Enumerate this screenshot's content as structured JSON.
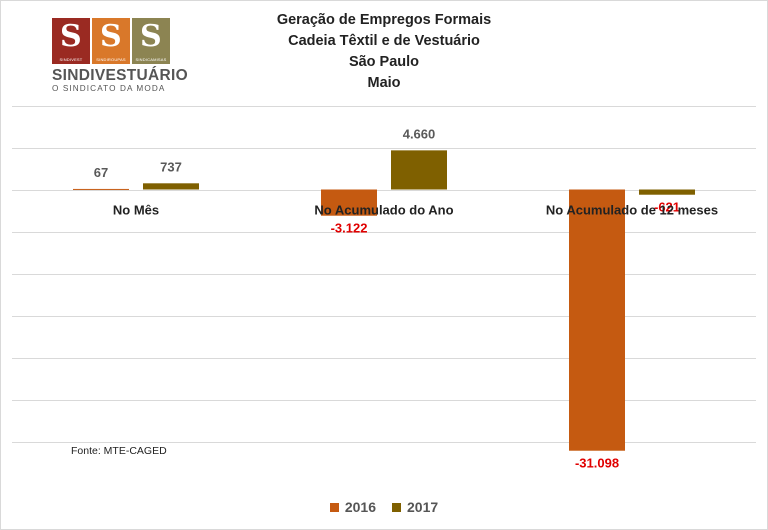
{
  "logo": {
    "squares": [
      {
        "caption": "SINDIVEST",
        "color": "#9a2a22",
        "icon": "s-mark"
      },
      {
        "caption": "SINDIROUPAS",
        "color": "#d9782a",
        "icon": "s-mark"
      },
      {
        "caption": "SINDICAMISAS",
        "color": "#8c8452",
        "icon": "s-mark"
      }
    ],
    "name": "SINDIVESTUÁRIO",
    "tagline": "O SINDICATO DA MODA"
  },
  "source": "Fonte: MTE-CAGED",
  "chart_data": {
    "type": "bar",
    "title": [
      "Geração de Empregos Formais",
      "Cadeia Têxtil e de Vestuário",
      "São Paulo",
      "Maio"
    ],
    "categories": [
      "No Mês",
      "No Acumulado do Ano",
      "No Acumulado de 12 meses"
    ],
    "series": [
      {
        "name": "2016",
        "color": "#c55a11",
        "values": [
          67,
          -3122,
          -31098
        ],
        "labels": [
          "67",
          "-3.122",
          "-31.098"
        ]
      },
      {
        "name": "2017",
        "color": "#7f6000",
        "values": [
          737,
          4660,
          -621
        ],
        "labels": [
          "737",
          "4.660",
          "-621"
        ]
      }
    ],
    "ylim": [
      -32000,
      10000
    ],
    "grid": true,
    "legend_position": "bottom",
    "positive_label_color": "#595959",
    "negative_label_color": "#e00000"
  }
}
